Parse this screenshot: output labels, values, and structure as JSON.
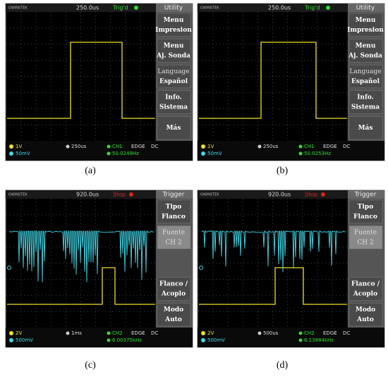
{
  "panels": [
    {
      "caption": "(a)",
      "top": {
        "brand": "GWINSTEK",
        "timebase": "250.0us",
        "status": "Trig'd",
        "mode": "Utility"
      },
      "menu": [
        [
          "Menu",
          "Impresion"
        ],
        [
          "Menu",
          "Aj. Sonda"
        ],
        [
          "Language",
          "Español"
        ],
        [
          "Info.",
          "Sistema"
        ],
        [
          "Más"
        ]
      ],
      "bottom": {
        "ch1": "1V",
        "ch2": "50mV",
        "time": "250us",
        "source": "CH1",
        "trigger": "EDGE",
        "coupling": "DC",
        "freq": "50.0249Hz"
      }
    },
    {
      "caption": "(b)",
      "top": {
        "brand": "GWINSTEK",
        "timebase": "250.0us",
        "status": "Trig'd",
        "mode": "Utility"
      },
      "menu": [
        [
          "Menu",
          "Impresion"
        ],
        [
          "Menu",
          "Aj. Sonda"
        ],
        [
          "Language",
          "Español"
        ],
        [
          "Info.",
          "Sistema"
        ],
        [
          "Más"
        ]
      ],
      "bottom": {
        "ch1": "1V",
        "ch2": "50mV",
        "time": "250us",
        "source": "CH1",
        "trigger": "EDGE",
        "coupling": "DC",
        "freq": "50.0253Hz"
      }
    },
    {
      "caption": "(c)",
      "top": {
        "brand": "GWINSTEK",
        "timebase": "920.0us",
        "status": "Stop",
        "mode": "Trigger"
      },
      "menu": [
        [
          "Tipo",
          "Flanco"
        ],
        [
          "Fuente",
          "CH 2"
        ],
        [
          "Flanco /",
          "Acoplo"
        ],
        [
          "Modo",
          "Auto"
        ]
      ],
      "bottom": {
        "ch1": "2V",
        "ch2": "500mV",
        "time": "1ms",
        "source": "CH2",
        "trigger": "EDGE",
        "coupling": "DC",
        "freq": "6.00375kHz"
      }
    },
    {
      "caption": "(d)",
      "top": {
        "brand": "GWINSTEK",
        "timebase": "920.0us",
        "status": "Stop",
        "mode": "Trigger"
      },
      "menu": [
        [
          "Tipo",
          "Flanco"
        ],
        [
          "Fuente",
          "CH 2"
        ],
        [
          "Flanco /",
          "Acoplo"
        ],
        [
          "Modo",
          "Auto"
        ]
      ],
      "bottom": {
        "ch1": "2V",
        "ch2": "500mV",
        "time": "500us",
        "source": "CH2",
        "trigger": "EDGE",
        "coupling": "DC",
        "freq": "6.13884kHz"
      }
    }
  ]
}
